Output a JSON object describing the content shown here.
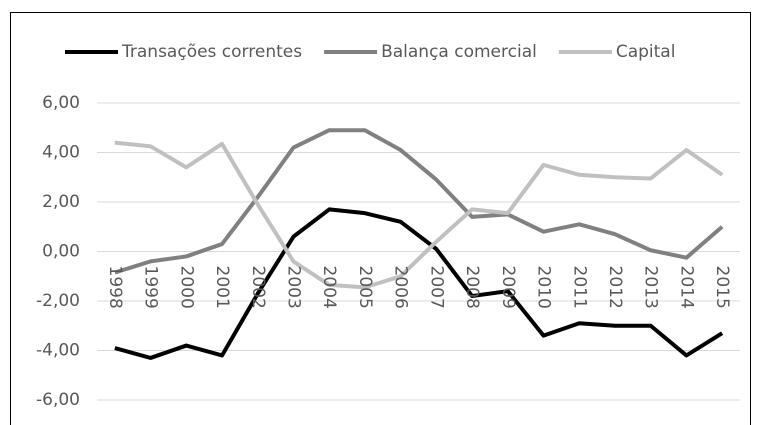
{
  "chart_data": {
    "type": "line",
    "categories": [
      "1998",
      "1999",
      "2000",
      "2001",
      "2002",
      "2003",
      "2004",
      "2005",
      "2006",
      "2007",
      "2008",
      "2009",
      "2010",
      "2011",
      "2012",
      "2013",
      "2014",
      "2015"
    ],
    "series": [
      {
        "name": "Transações correntes",
        "color": "#000000",
        "values": [
          -3.9,
          -4.3,
          -3.8,
          -4.2,
          -1.7,
          0.6,
          1.7,
          1.55,
          1.2,
          0.1,
          -1.8,
          -1.6,
          -3.4,
          -2.9,
          -3.0,
          -3.0,
          -4.2,
          -3.3
        ]
      },
      {
        "name": "Balança comercial",
        "color": "#808080",
        "values": [
          -0.85,
          -0.4,
          -0.2,
          0.3,
          2.2,
          4.2,
          4.9,
          4.9,
          4.1,
          2.9,
          1.4,
          1.5,
          0.8,
          1.1,
          0.7,
          0.05,
          -0.25,
          1.0
        ]
      },
      {
        "name": "Capital",
        "color": "#c0c0c0",
        "values": [
          4.4,
          4.25,
          3.4,
          4.35,
          1.9,
          -0.4,
          -1.35,
          -1.45,
          -1.0,
          0.4,
          1.7,
          1.55,
          3.5,
          3.1,
          3.0,
          2.95,
          4.1,
          3.1
        ]
      }
    ],
    "ylim": [
      -6,
      6
    ],
    "yticks": [
      {
        "value": -6,
        "label": "-6,00"
      },
      {
        "value": -4,
        "label": "-4,00"
      },
      {
        "value": -2,
        "label": "-2,00"
      },
      {
        "value": 0,
        "label": "0,00"
      },
      {
        "value": 2,
        "label": "2,00"
      },
      {
        "value": 4,
        "label": "4,00"
      },
      {
        "value": 6,
        "label": "6,00"
      }
    ],
    "grid": true,
    "legend": "top"
  }
}
